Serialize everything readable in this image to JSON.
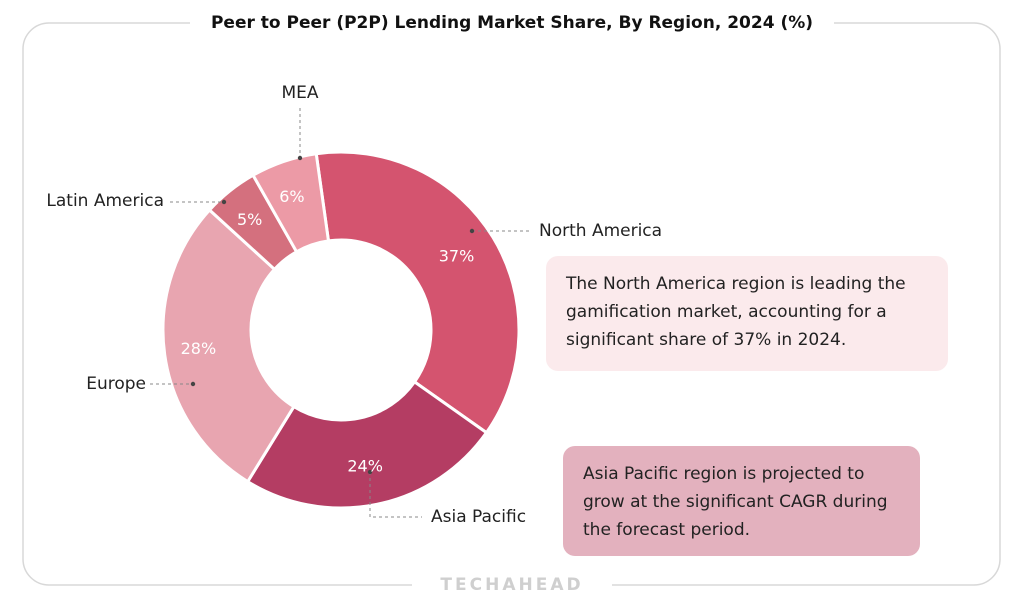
{
  "chart_data": {
    "type": "donut",
    "title": "Peer to Peer (P2P) Lending Market Share, By Region, 2024 (%)",
    "categories": [
      "North America",
      "Asia Pacific",
      "Europe",
      "Latin America",
      "MEA"
    ],
    "values": [
      37,
      24,
      28,
      5,
      6
    ],
    "value_labels": [
      "37%",
      "24%",
      "28%",
      "5%",
      "6%"
    ],
    "colors": [
      "#d4546f",
      "#b43d63",
      "#e8a5b0",
      "#d4707e",
      "#ec9aa6"
    ],
    "annotations": [
      "The North America region is leading the gamification market, accounting for a significant share of 37% in 2024.",
      "Asia Pacific region is projected to grow at the significant CAGR during the forecast period."
    ],
    "brand": "TECHAHEAD"
  }
}
